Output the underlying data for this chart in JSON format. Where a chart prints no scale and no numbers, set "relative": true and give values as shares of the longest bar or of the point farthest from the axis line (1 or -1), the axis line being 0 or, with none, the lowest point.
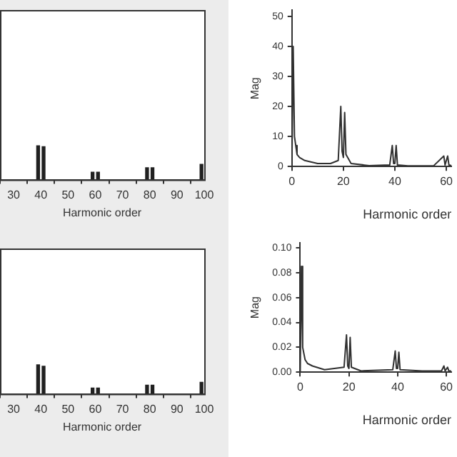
{
  "chart_data": [
    {
      "type": "bar",
      "xlabel": "Harmonic order",
      "relative": true,
      "tick_labels": "x",
      "grid": false,
      "xlim": [
        25,
        100
      ],
      "xticks": [
        30,
        40,
        50,
        60,
        70,
        80,
        90,
        100
      ],
      "x": [
        39,
        41,
        59,
        61,
        79,
        81,
        99
      ],
      "color": "#202020",
      "values": [
        1,
        0.97,
        0.22,
        0.22,
        0.35,
        0.35,
        0.45
      ]
    },
    {
      "type": "line",
      "xlabel": "Harmonic order",
      "ylabel": "Mag",
      "grid": false,
      "marker": "none",
      "xlim": [
        0,
        62
      ],
      "xticks": [
        0,
        20,
        40,
        60
      ],
      "ylim": [
        0,
        52
      ],
      "yticks": [
        0,
        10,
        20,
        30,
        40,
        50
      ],
      "color": "#303030",
      "x": [
        0,
        0.5,
        1,
        1.5,
        2,
        3,
        5,
        10,
        15,
        18,
        19,
        19.5,
        20,
        20.5,
        21,
        23,
        30,
        38,
        39,
        39.5,
        40,
        40.5,
        41,
        45,
        55,
        59,
        59.5,
        60.5,
        61,
        62
      ],
      "values": [
        0,
        40,
        10,
        7,
        4,
        3,
        2,
        1,
        1,
        2,
        20,
        5,
        3,
        18,
        4,
        1,
        0.3,
        0.5,
        7,
        1,
        1,
        7,
        0.5,
        0.2,
        0.2,
        3.5,
        0.5,
        3.5,
        0.5,
        0.3
      ]
    },
    {
      "type": "bar",
      "xlabel": "Harmonic order",
      "relative": true,
      "tick_labels": "x",
      "grid": false,
      "xlim": [
        25,
        100
      ],
      "xticks": [
        30,
        40,
        50,
        60,
        70,
        80,
        90,
        100
      ],
      "x": [
        39,
        41,
        59,
        61,
        79,
        81,
        99
      ],
      "color": "#202020",
      "values": [
        1,
        0.95,
        0.2,
        0.2,
        0.3,
        0.3,
        0.4
      ]
    },
    {
      "type": "line",
      "xlabel": "Harmonic order",
      "ylabel": "Mag",
      "grid": false,
      "marker": "none",
      "xlim": [
        0,
        62
      ],
      "xticks": [
        0,
        20,
        40,
        60
      ],
      "ylim": [
        0,
        0.104
      ],
      "yticks": [
        {
          "value": 0,
          "label": "0.00"
        },
        {
          "value": 0.02,
          "label": "0.02"
        },
        {
          "value": 0.04,
          "label": "0.04"
        },
        {
          "value": 0.06,
          "label": "0.06"
        },
        {
          "value": 0.08,
          "label": "0.08"
        },
        {
          "value": 0.1,
          "label": "0.10"
        }
      ],
      "color": "#303030",
      "x": [
        0,
        0.5,
        1,
        2,
        3,
        5,
        10,
        18,
        19,
        19.5,
        20,
        20.5,
        21,
        25,
        38,
        39,
        39.5,
        40,
        40.5,
        41,
        50,
        58,
        59,
        59.5,
        60.5,
        61,
        62
      ],
      "values": [
        0,
        0.085,
        0.02,
        0.01,
        0.007,
        0.005,
        0.002,
        0.004,
        0.03,
        0.005,
        0.003,
        0.028,
        0.004,
        0.001,
        0.002,
        0.017,
        0.003,
        0.003,
        0.016,
        0.002,
        0.001,
        0.001,
        0.005,
        0.001,
        0.004,
        0.001,
        0.001
      ]
    }
  ]
}
